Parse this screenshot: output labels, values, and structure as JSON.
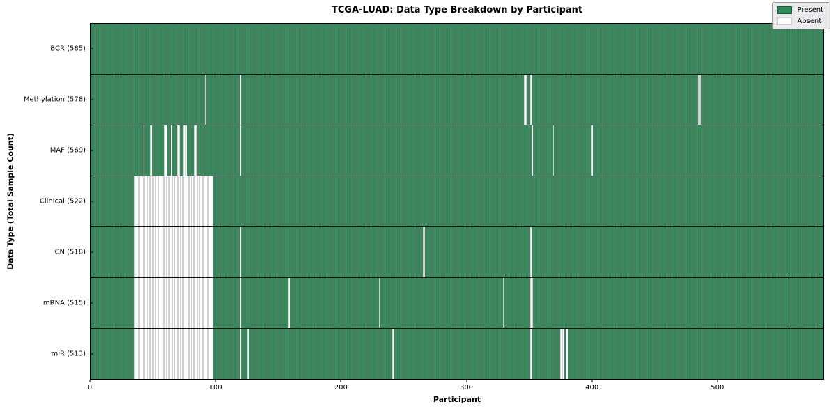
{
  "title": "TCGA-LUAD: Data Type Breakdown by Participant",
  "x_axis": {
    "label": "Participant",
    "ticks": [
      0,
      100,
      200,
      300,
      400,
      500
    ]
  },
  "y_axis": {
    "label": "Data Type (Total Sample Count)"
  },
  "legend": {
    "present_label": "Present",
    "absent_label": "Absent"
  },
  "colors": {
    "present": "#2e8b57",
    "absent": "#ffffff",
    "row_separator": "#000000",
    "legend_bg": "#eaeaec"
  },
  "chart_data": {
    "type": "heatmap",
    "title": "TCGA-LUAD: Data Type Breakdown by Participant",
    "xlabel": "Participant",
    "ylabel": "Data Type (Total Sample Count)",
    "xlim": [
      0,
      585
    ],
    "total_participants": 585,
    "legend_position": "upper right",
    "value_legend": {
      "present": "green",
      "absent": "white"
    },
    "rows": [
      {
        "name": "BCR",
        "label": "BCR (585)",
        "present_count": 585,
        "absent_count": 0,
        "absent_ranges": []
      },
      {
        "name": "Methylation",
        "label": "Methylation (578)",
        "present_count": 578,
        "absent_count": 7,
        "absent_ranges": [
          [
            91,
            91
          ],
          [
            119,
            119
          ],
          [
            346,
            347
          ],
          [
            351,
            351
          ],
          [
            485,
            486
          ]
        ]
      },
      {
        "name": "MAF",
        "label": "MAF (569)",
        "present_count": 569,
        "absent_count": 16,
        "absent_ranges": [
          [
            42,
            42
          ],
          [
            48,
            48
          ],
          [
            59,
            60
          ],
          [
            64,
            64
          ],
          [
            69,
            70
          ],
          [
            74,
            76
          ],
          [
            83,
            84
          ],
          [
            119,
            119
          ],
          [
            352,
            352
          ],
          [
            369,
            369
          ],
          [
            400,
            400
          ]
        ]
      },
      {
        "name": "Clinical",
        "label": "Clinical (522)",
        "present_count": 522,
        "absent_count": 63,
        "absent_ranges": [
          [
            35,
            97
          ]
        ]
      },
      {
        "name": "CN",
        "label": "CN (518)",
        "present_count": 518,
        "absent_count": 67,
        "absent_ranges": [
          [
            35,
            97
          ],
          [
            119,
            119
          ],
          [
            265,
            266
          ],
          [
            351,
            351
          ]
        ]
      },
      {
        "name": "mRNA",
        "label": "mRNA (515)",
        "present_count": 515,
        "absent_count": 70,
        "absent_ranges": [
          [
            35,
            97
          ],
          [
            119,
            119
          ],
          [
            158,
            158
          ],
          [
            230,
            230
          ],
          [
            329,
            329
          ],
          [
            351,
            352
          ],
          [
            557,
            557
          ]
        ]
      },
      {
        "name": "miR",
        "label": "miR (513)",
        "present_count": 513,
        "absent_count": 72,
        "absent_ranges": [
          [
            35,
            97
          ],
          [
            119,
            119
          ],
          [
            125,
            125
          ],
          [
            241,
            241
          ],
          [
            351,
            351
          ],
          [
            375,
            377
          ],
          [
            379,
            380
          ]
        ]
      }
    ]
  }
}
